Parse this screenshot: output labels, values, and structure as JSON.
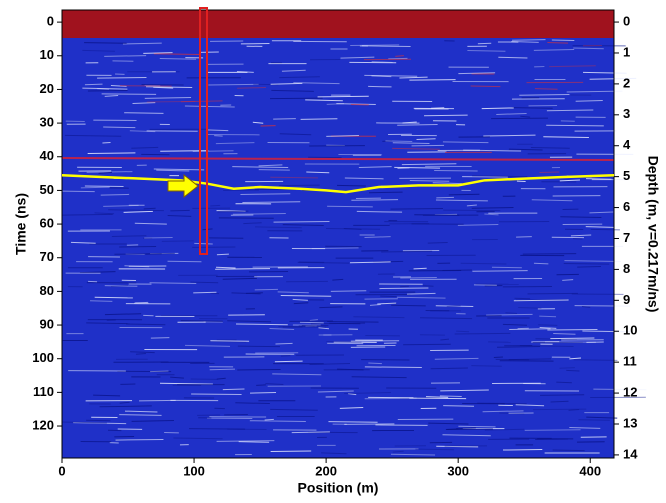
{
  "chart_data": {
    "type": "line",
    "xlabel": "Position (m)",
    "ylabel": "Time (ns)",
    "y2label": "Depth (m, v=0.217m/ns)",
    "xlim": [
      0,
      418
    ],
    "xticks": [
      0,
      100,
      200,
      300,
      400
    ],
    "ylim": [
      -3.6,
      129.5
    ],
    "yticks": [
      0,
      10,
      20,
      30,
      40,
      50,
      60,
      70,
      80,
      90,
      100,
      110,
      120
    ],
    "y_inverted": true,
    "y2lim": [
      -0.39,
      14.1
    ],
    "y2ticks": [
      0,
      1,
      2,
      3,
      4,
      5,
      6,
      7,
      8,
      9,
      10,
      11,
      12,
      13,
      14
    ],
    "y2_inverted": true,
    "series": [
      {
        "color": "#ffff00",
        "x": [
          0,
          30,
          60,
          90,
          110,
          130,
          150,
          180,
          200,
          215,
          240,
          270,
          300,
          320,
          350,
          380,
          418
        ],
        "values": [
          45.5,
          46,
          46.5,
          47,
          48,
          49.5,
          49,
          49.5,
          50,
          50.5,
          49,
          48.5,
          48.5,
          47,
          46.5,
          46,
          45.5
        ]
      }
    ]
  }
}
